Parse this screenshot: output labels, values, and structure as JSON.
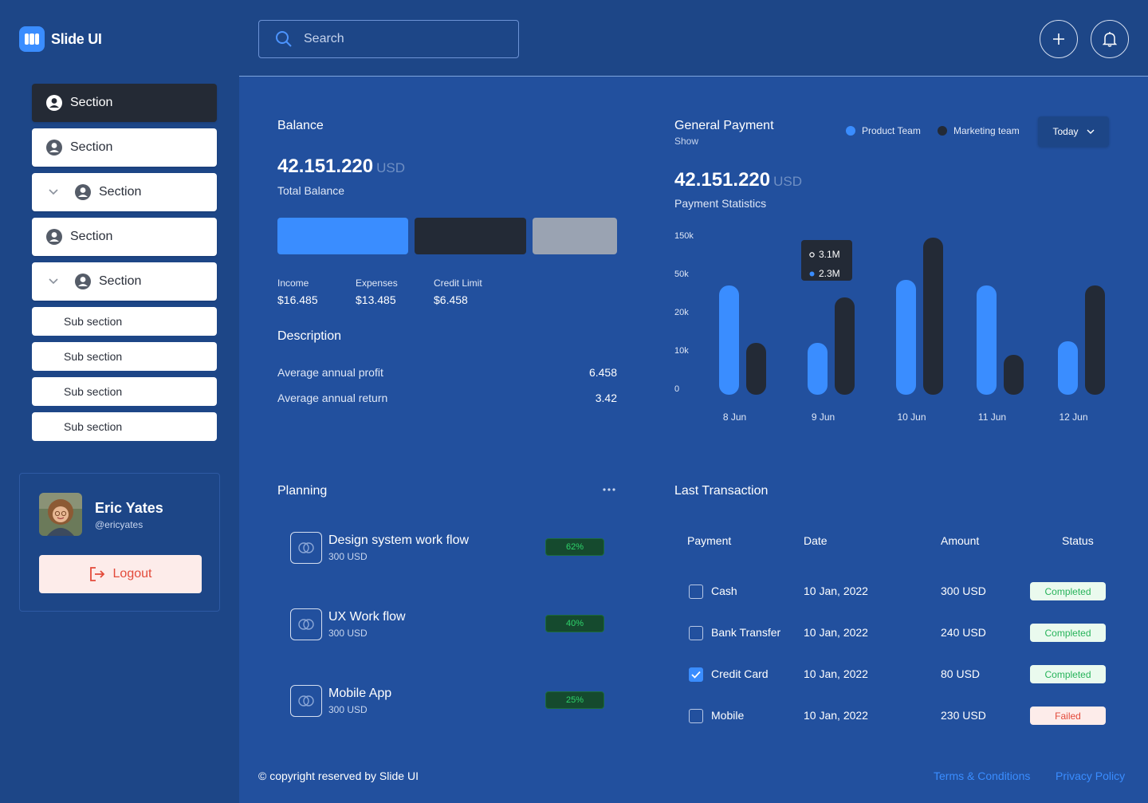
{
  "brand": {
    "name": "Slide UI"
  },
  "sidebar": {
    "items": [
      {
        "label": "Section",
        "active": true
      },
      {
        "label": "Section"
      },
      {
        "label": "Section",
        "expandable": true
      },
      {
        "label": "Section"
      },
      {
        "label": "Section",
        "expandable": true
      }
    ],
    "sub_items": [
      "Sub section",
      "Sub section",
      "Sub section",
      "Sub section"
    ],
    "profile": {
      "name": "Eric Yates",
      "handle": "@ericyates",
      "logout_label": "Logout"
    }
  },
  "header": {
    "search_placeholder": "Search",
    "add_icon": "plus-icon",
    "bell_icon": "bell-icon"
  },
  "balance": {
    "title": "Balance",
    "amount": "42.151.220",
    "unit": "USD",
    "label": "Total Balance",
    "stats": [
      {
        "key": "Income",
        "value": "$16.485"
      },
      {
        "key": "Expenses",
        "value": "$13.485"
      },
      {
        "key": "Credit Limit",
        "value": "$6.458"
      }
    ],
    "description_title": "Description",
    "description": [
      {
        "key": "Average annual profit",
        "value": "6.458"
      },
      {
        "key": "Average annual return",
        "value": "3.42"
      }
    ]
  },
  "payment": {
    "title": "General Payment",
    "subtitle": "Show",
    "legend": [
      {
        "name": "Product Team",
        "color": "#3a8dff"
      },
      {
        "name": "Marketing team",
        "color": "#232a36"
      }
    ],
    "period": "Today",
    "amount": "42.151.220",
    "unit": "USD",
    "label": "Payment Statistics",
    "tooltip": {
      "a": "3.1M",
      "b": "2.3M"
    }
  },
  "chart_data": {
    "type": "bar",
    "title": "Payment Statistics",
    "categories": [
      "8 Jun",
      "9 Jun",
      "10 Jun",
      "11 Jun",
      "12 Jun"
    ],
    "y_tick_labels": [
      "150k",
      "50k",
      "20k",
      "10k",
      "0"
    ],
    "ylim": [
      0,
      4
    ],
    "note": "values expressed in tick-index units (0 = '0', 1 = '10k', 2 = '20k', 3 = '50k', 4 = '150k')",
    "series": [
      {
        "name": "Product Team",
        "color": "#3a8dff",
        "values": [
          2.85,
          1.35,
          3.0,
          2.85,
          1.4
        ]
      },
      {
        "name": "Marketing team",
        "color": "#232a36",
        "values": [
          1.35,
          2.55,
          4.1,
          1.05,
          2.85
        ]
      }
    ]
  },
  "planning": {
    "title": "Planning",
    "more_icon": "more-icon",
    "items": [
      {
        "name": "Design system work flow",
        "amount": "300 USD",
        "percent": "62%"
      },
      {
        "name": "UX Work flow",
        "amount": "300 USD",
        "percent": "40%"
      },
      {
        "name": "Mobile App",
        "amount": "300 USD",
        "percent": "25%"
      }
    ]
  },
  "transactions": {
    "title": "Last Transaction",
    "columns": [
      "Payment",
      "Date",
      "Amount",
      "Status"
    ],
    "rows": [
      {
        "payment": "Cash",
        "date": "10 Jan, 2022",
        "amount": "300 USD",
        "status": "Completed",
        "checked": false
      },
      {
        "payment": "Bank Transfer",
        "date": "10 Jan, 2022",
        "amount": "240 USD",
        "status": "Completed",
        "checked": false
      },
      {
        "payment": "Credit Card",
        "date": "10 Jan, 2022",
        "amount": "80 USD",
        "status": "Completed",
        "checked": true
      },
      {
        "payment": "Mobile",
        "date": "10 Jan, 2022",
        "amount": "230 USD",
        "status": "Failed",
        "checked": false
      }
    ]
  },
  "footer": {
    "copyright": "© copyright reserved by Slide UI",
    "terms": "Terms & Conditions",
    "privacy": "Privacy Policy"
  }
}
